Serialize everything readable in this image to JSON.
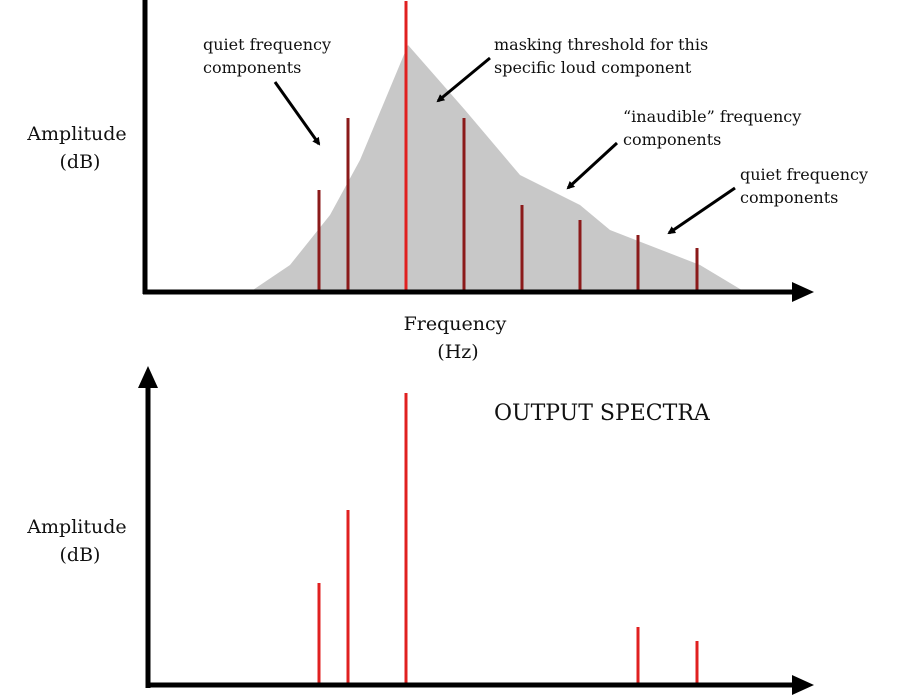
{
  "top_panel": {
    "y_label": [
      "Amplitude",
      "(dB)"
    ],
    "x_label": [
      "Frequency",
      "(Hz)"
    ],
    "annotations": [
      {
        "lines": [
          "quiet frequency",
          "components"
        ]
      },
      {
        "lines": [
          "masking threshold for this",
          "specific  loud component"
        ]
      },
      {
        "lines": [
          "“inaudible” frequency",
          "components"
        ]
      },
      {
        "lines": [
          "quiet frequency",
          "components"
        ]
      }
    ]
  },
  "bottom_panel": {
    "title": "OUTPUT SPECTRA",
    "y_label": [
      "Amplitude",
      "(dB)"
    ]
  }
}
